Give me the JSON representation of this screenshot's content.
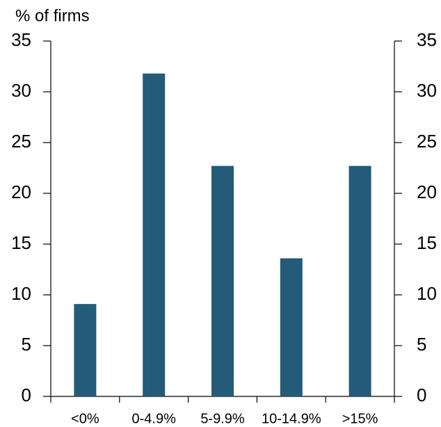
{
  "chart_data": {
    "type": "bar",
    "title": "% of firms",
    "categories": [
      "<0%",
      "0-4.9%",
      "5-9.9%",
      "10-14.9%",
      ">15%"
    ],
    "values": [
      9.1,
      31.8,
      22.7,
      13.6,
      22.7
    ],
    "color": "#235b78",
    "ylim": [
      0,
      35
    ],
    "yticks": [
      0,
      5,
      10,
      15,
      20,
      25,
      30,
      35
    ],
    "y2lim": [
      0,
      35
    ],
    "y2ticks": [
      0,
      5,
      10,
      15,
      20,
      25,
      30,
      35
    ]
  }
}
